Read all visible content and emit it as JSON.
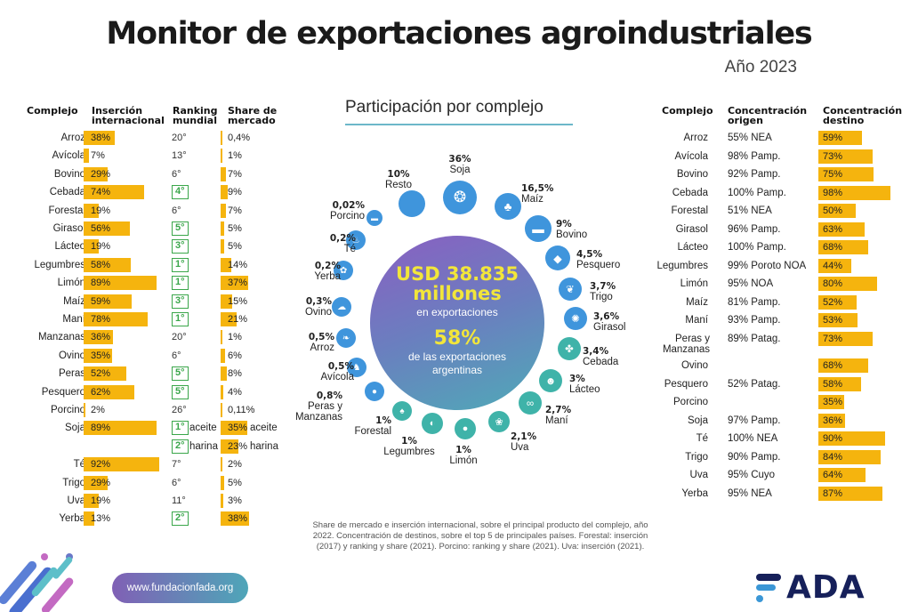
{
  "header": {
    "title": "Monitor de exportaciones agroindustriales",
    "year": "Año 2023"
  },
  "left_table": {
    "headers": {
      "complejo": "Complejo",
      "insercion": "Inserción internacional",
      "ranking": "Ranking mundial",
      "share": "Share de mercado"
    },
    "rows": [
      {
        "name": "Arroz",
        "insercion": 38,
        "insercion_label": "38%",
        "ranking": "20°",
        "ranking_highlight": false,
        "share": 0.4,
        "share_label": "0,4%"
      },
      {
        "name": "Avícola",
        "insercion": 7,
        "insercion_label": "7%",
        "ranking": "13°",
        "ranking_highlight": false,
        "share": 1,
        "share_label": "1%"
      },
      {
        "name": "Bovino",
        "insercion": 29,
        "insercion_label": "29%",
        "ranking": "6°",
        "ranking_highlight": false,
        "share": 7,
        "share_label": "7%"
      },
      {
        "name": "Cebada",
        "insercion": 74,
        "insercion_label": "74%",
        "ranking": "4°",
        "ranking_highlight": true,
        "share": 9,
        "share_label": "9%"
      },
      {
        "name": "Forestal",
        "insercion": 19,
        "insercion_label": "19%",
        "ranking": "6°",
        "ranking_highlight": false,
        "share": 7,
        "share_label": "7%"
      },
      {
        "name": "Girasol",
        "insercion": 56,
        "insercion_label": "56%",
        "ranking": "5°",
        "ranking_highlight": true,
        "share": 5,
        "share_label": "5%"
      },
      {
        "name": "Lácteo",
        "insercion": 19,
        "insercion_label": "19%",
        "ranking": "3°",
        "ranking_highlight": true,
        "share": 5,
        "share_label": "5%"
      },
      {
        "name": "Legumbres",
        "insercion": 58,
        "insercion_label": "58%",
        "ranking": "1°",
        "ranking_highlight": true,
        "share": 14,
        "share_label": "14%"
      },
      {
        "name": "Limón",
        "insercion": 89,
        "insercion_label": "89%",
        "ranking": "1°",
        "ranking_highlight": true,
        "share": 37,
        "share_label": "37%"
      },
      {
        "name": "Maíz",
        "insercion": 59,
        "insercion_label": "59%",
        "ranking": "3°",
        "ranking_highlight": true,
        "share": 15,
        "share_label": "15%"
      },
      {
        "name": "Maní",
        "insercion": 78,
        "insercion_label": "78%",
        "ranking": "1°",
        "ranking_highlight": true,
        "share": 21,
        "share_label": "21%"
      },
      {
        "name": "Manzanas",
        "insercion": 36,
        "insercion_label": "36%",
        "ranking": "20°",
        "ranking_highlight": false,
        "share": 1,
        "share_label": "1%"
      },
      {
        "name": "Ovino",
        "insercion": 35,
        "insercion_label": "35%",
        "ranking": "6°",
        "ranking_highlight": false,
        "share": 6,
        "share_label": "6%"
      },
      {
        "name": "Peras",
        "insercion": 52,
        "insercion_label": "52%",
        "ranking": "5°",
        "ranking_highlight": true,
        "share": 8,
        "share_label": "8%"
      },
      {
        "name": "Pesquero",
        "insercion": 62,
        "insercion_label": "62%",
        "ranking": "5°",
        "ranking_highlight": true,
        "share": 4,
        "share_label": "4%"
      },
      {
        "name": "Porcino",
        "insercion": 2,
        "insercion_label": "2%",
        "ranking": "26°",
        "ranking_highlight": false,
        "share": 0.11,
        "share_label": "0,11%"
      },
      {
        "name": "Soja",
        "insercion": 89,
        "insercion_label": "89%",
        "ranking": "1°",
        "ranking_highlight": true,
        "ranking_note": "aceite",
        "share": 35,
        "share_label": "35%",
        "share_note": "aceite"
      },
      {
        "name": "",
        "insercion": null,
        "insercion_label": "",
        "ranking": "2°",
        "ranking_highlight": true,
        "ranking_note": "harina",
        "share": 23,
        "share_label": "23%",
        "share_note": "harina"
      },
      {
        "name": "Té",
        "insercion": 92,
        "insercion_label": "92%",
        "ranking": "7°",
        "ranking_highlight": false,
        "share": 2,
        "share_label": "2%"
      },
      {
        "name": "Trigo",
        "insercion": 29,
        "insercion_label": "29%",
        "ranking": "6°",
        "ranking_highlight": false,
        "share": 5,
        "share_label": "5%"
      },
      {
        "name": "Uva",
        "insercion": 19,
        "insercion_label": "19%",
        "ranking": "11°",
        "ranking_highlight": false,
        "share": 3,
        "share_label": "3%"
      },
      {
        "name": "Yerba",
        "insercion": 13,
        "insercion_label": "13%",
        "ranking": "2°",
        "ranking_highlight": true,
        "share": 38,
        "share_label": "38%"
      }
    ]
  },
  "right_table": {
    "headers": {
      "complejo": "Complejo",
      "origen": "Concentración origen",
      "destino": "Concentración destino"
    },
    "rows": [
      {
        "name": "Arroz",
        "origen": "55% NEA",
        "destino": 59,
        "destino_label": "59%"
      },
      {
        "name": "Avícola",
        "origen": "98% Pamp.",
        "destino": 73,
        "destino_label": "73%"
      },
      {
        "name": "Bovino",
        "origen": "92% Pamp.",
        "destino": 75,
        "destino_label": "75%"
      },
      {
        "name": "Cebada",
        "origen": "100% Pamp.",
        "destino": 98,
        "destino_label": "98%"
      },
      {
        "name": "Forestal",
        "origen": "51% NEA",
        "destino": 50,
        "destino_label": "50%"
      },
      {
        "name": "Girasol",
        "origen": "96% Pamp.",
        "destino": 63,
        "destino_label": "63%"
      },
      {
        "name": "Lácteo",
        "origen": "100% Pamp.",
        "destino": 68,
        "destino_label": "68%"
      },
      {
        "name": "Legumbres",
        "origen": "99% Poroto NOA",
        "destino": 44,
        "destino_label": "44%"
      },
      {
        "name": "Limón",
        "origen": "95% NOA",
        "destino": 80,
        "destino_label": "80%"
      },
      {
        "name": "Maíz",
        "origen": "81% Pamp.",
        "destino": 52,
        "destino_label": "52%"
      },
      {
        "name": "Maní",
        "origen": "93% Pamp.",
        "destino": 53,
        "destino_label": "53%"
      },
      {
        "name": "Peras y Manzanas",
        "origen": "89% Patag.",
        "destino": 73,
        "destino_label": "73%"
      },
      {
        "name": "Ovino",
        "origen": "",
        "destino": 68,
        "destino_label": "68%"
      },
      {
        "name": "Pesquero",
        "origen": "52% Patag.",
        "destino": 58,
        "destino_label": "58%"
      },
      {
        "name": "Porcino",
        "origen": "",
        "destino": 35,
        "destino_label": "35%"
      },
      {
        "name": "Soja",
        "origen": "97% Pamp.",
        "destino": 36,
        "destino_label": "36%"
      },
      {
        "name": "Té",
        "origen": "100% NEA",
        "destino": 90,
        "destino_label": "90%"
      },
      {
        "name": "Trigo",
        "origen": "90% Pamp.",
        "destino": 84,
        "destino_label": "84%"
      },
      {
        "name": "Uva",
        "origen": "95% Cuyo",
        "destino": 64,
        "destino_label": "64%"
      },
      {
        "name": "Yerba",
        "origen": "95% NEA",
        "destino": 87,
        "destino_label": "87%"
      }
    ]
  },
  "center": {
    "title": "Participación por complejo",
    "usd_line1": "USD 38.835",
    "usd_line2": "millones",
    "usd_sub": "en exportaciones",
    "pct": "58%",
    "pct_sub1": "de las exportaciones",
    "pct_sub2": "argentinas",
    "items": [
      {
        "name": "Soja",
        "pct": "36%",
        "icon": "soy-icon"
      },
      {
        "name": "Maíz",
        "pct": "16,5%",
        "icon": "corn-icon"
      },
      {
        "name": "Bovino",
        "pct": "9%",
        "icon": "cow-icon"
      },
      {
        "name": "Pesquero",
        "pct": "4,5%",
        "icon": "fish-icon"
      },
      {
        "name": "Trigo",
        "pct": "3,7%",
        "icon": "wheat-icon"
      },
      {
        "name": "Girasol",
        "pct": "3,6%",
        "icon": "sunflower-icon"
      },
      {
        "name": "Cebada",
        "pct": "3,4%",
        "icon": "barley-icon"
      },
      {
        "name": "Lácteo",
        "pct": "3%",
        "icon": "dairy-cow-icon"
      },
      {
        "name": "Maní",
        "pct": "2,7%",
        "icon": "peanut-icon"
      },
      {
        "name": "Uva",
        "pct": "2,1%",
        "icon": "grape-icon"
      },
      {
        "name": "Limón",
        "pct": "1%",
        "icon": "lemon-icon"
      },
      {
        "name": "Legumbres",
        "pct": "1%",
        "icon": "bean-icon"
      },
      {
        "name": "Forestal",
        "pct": "1%",
        "icon": "tree-icon"
      },
      {
        "name": "Peras y Manzanas",
        "pct": "0,8%",
        "icon": "apple-icon"
      },
      {
        "name": "Avícola",
        "pct": "0,5%",
        "icon": "chicken-icon"
      },
      {
        "name": "Arroz",
        "pct": "0,5%",
        "icon": "rice-icon"
      },
      {
        "name": "Ovino",
        "pct": "0,3%",
        "icon": "sheep-icon"
      },
      {
        "name": "Yerba",
        "pct": "0,2%",
        "icon": "yerba-icon"
      },
      {
        "name": "Té",
        "pct": "0,2%",
        "icon": "tea-icon"
      },
      {
        "name": "Porcino",
        "pct": "0,02%",
        "icon": "pig-icon"
      },
      {
        "name": "Resto",
        "pct": "10%",
        "icon": "circle-icon"
      }
    ]
  },
  "footnote": "Share de mercado e inserción internacional, sobre el principal producto del complejo, año 2022. Concentración de destinos, sobre el top 5 de principales países. Forestal: inserción (2017) y ranking y share (2021). Porcino: ranking y share (2021). Uva: inserción (2021).",
  "footer": {
    "url": "www.fundacionfada.org",
    "logo": "FADA"
  },
  "colors": {
    "bar": "#f5b40e",
    "rank_highlight": "#3aa64a",
    "icon_blue": "#3f95dc",
    "icon_teal": "#3fb3a9",
    "accent_yellow": "#f2e63a",
    "logo_navy": "#16205a"
  }
}
